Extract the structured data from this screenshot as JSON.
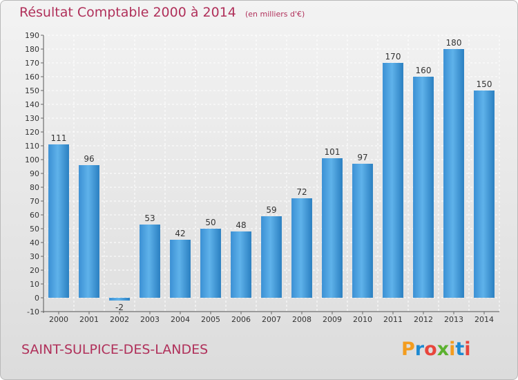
{
  "header": {
    "title": "Résultat Comptable 2000 à 2014",
    "subtitle": "(en milliers d'€)"
  },
  "footer": {
    "commune": "SAINT-SULPICE-DES-LANDES",
    "logo_text": "Proxiti"
  },
  "colors": {
    "title": "#b0305a",
    "bar_light": "#5fb2ea",
    "bar_dark": "#2a7fc1",
    "grid": "#ffffff"
  },
  "chart_data": {
    "type": "bar",
    "title": "Résultat Comptable 2000 à 2014",
    "subtitle": "(en milliers d'€)",
    "categories": [
      "2000",
      "2001",
      "2002",
      "2003",
      "2004",
      "2005",
      "2006",
      "2007",
      "2008",
      "2009",
      "2010",
      "2011",
      "2012",
      "2013",
      "2014"
    ],
    "values": [
      111,
      96,
      -2,
      53,
      42,
      50,
      48,
      59,
      72,
      101,
      97,
      170,
      160,
      180,
      150
    ],
    "ylim": [
      -10,
      190
    ],
    "yticks": [
      -10,
      0,
      10,
      20,
      30,
      40,
      50,
      60,
      70,
      80,
      90,
      100,
      110,
      120,
      130,
      140,
      150,
      160,
      170,
      180,
      190
    ],
    "grid": true,
    "legend": "none"
  }
}
